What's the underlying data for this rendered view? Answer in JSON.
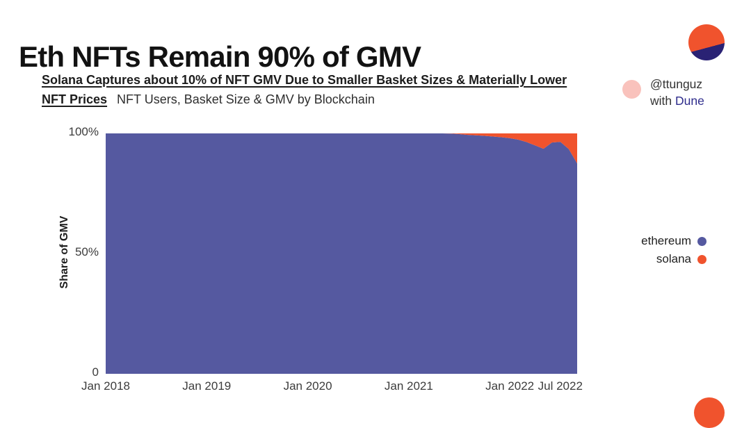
{
  "header": {
    "title": "Eth NFTs Remain 90% of GMV",
    "subtitle_line1": "Solana Captures about 10% of NFT GMV Due to Smaller Basket Sizes & Materially Lower",
    "subtitle_line2_bold": "NFT Prices",
    "subtitle_line2_plain": "NFT Users, Basket Size & GMV by Blockchain"
  },
  "byline": {
    "handle": "@ttunguz",
    "with_prefix": "with ",
    "brand": "Dune"
  },
  "branding": {
    "logo_orange": "#F0532D",
    "logo_navy": "#2A2274",
    "byline_dot_pink": "#F9C2BC",
    "brand_text_color": "#2E2C8C",
    "corner_circle_color": "#F0532D"
  },
  "chart_data": {
    "type": "area",
    "stacked": true,
    "ylabel": "Share of GMV",
    "ylim": [
      0,
      100
    ],
    "x_unit": "month",
    "x_start": "2018-01",
    "x_end": "2022-09",
    "grid": false,
    "legend_position": "right",
    "y_ticks": [
      {
        "label": "100%",
        "value": 100
      },
      {
        "label": "50%",
        "value": 50
      },
      {
        "label": "0",
        "value": 0
      }
    ],
    "x_ticks": [
      {
        "label": "Jan 2018",
        "month_index": 0
      },
      {
        "label": "Jan 2019",
        "month_index": 12
      },
      {
        "label": "Jan 2020",
        "month_index": 24
      },
      {
        "label": "Jan 2021",
        "month_index": 36
      },
      {
        "label": "Jan 2022",
        "month_index": 48
      },
      {
        "label": "Jul 2022",
        "month_index": 54
      }
    ],
    "series": [
      {
        "name": "ethereum",
        "color": "#5559A0",
        "values": [
          100,
          100,
          100,
          100,
          100,
          100,
          100,
          100,
          100,
          100,
          100,
          100,
          100,
          100,
          100,
          100,
          100,
          100,
          100,
          100,
          100,
          100,
          100,
          100,
          100,
          100,
          100,
          100,
          100,
          100,
          100,
          100,
          100,
          100,
          100,
          100,
          100,
          100,
          100,
          100,
          100,
          99.9,
          99.7,
          99.4,
          99.2,
          99.0,
          98.7,
          98.4,
          98.0,
          97.4,
          96.4,
          95.0,
          93.6,
          96.2,
          96.5,
          93.5,
          87.5
        ]
      },
      {
        "name": "solana",
        "color": "#F0532D",
        "values": [
          0,
          0,
          0,
          0,
          0,
          0,
          0,
          0,
          0,
          0,
          0,
          0,
          0,
          0,
          0,
          0,
          0,
          0,
          0,
          0,
          0,
          0,
          0,
          0,
          0,
          0,
          0,
          0,
          0,
          0,
          0,
          0,
          0,
          0,
          0,
          0,
          0,
          0,
          0,
          0,
          0,
          0.1,
          0.3,
          0.6,
          0.8,
          1.0,
          1.3,
          1.6,
          2.0,
          2.6,
          3.6,
          5.0,
          6.4,
          3.8,
          3.5,
          6.5,
          12.5
        ]
      }
    ]
  }
}
